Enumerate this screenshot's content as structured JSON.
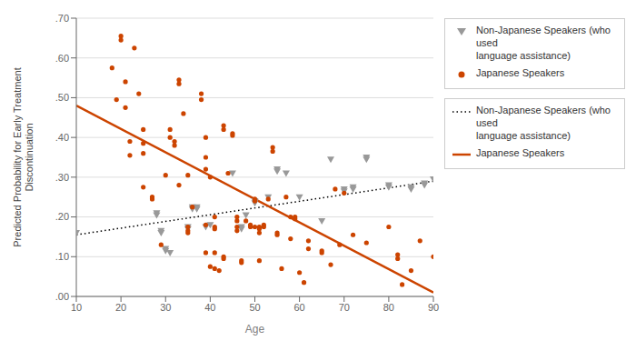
{
  "chart_data": {
    "type": "scatter",
    "xlabel": "Age",
    "ylabel": "Predicted Probability for Early Treatment\nDiscontinuation",
    "xlim": [
      10,
      90
    ],
    "ylim": [
      0.0,
      0.7
    ],
    "xticks": [
      10,
      20,
      30,
      40,
      50,
      60,
      70,
      80,
      90
    ],
    "yticks": [
      {
        "value": 0.0,
        "label": ".00"
      },
      {
        "value": 0.1,
        "label": ".10"
      },
      {
        "value": 0.2,
        "label": ".20"
      },
      {
        "value": 0.3,
        "label": ".30"
      },
      {
        "value": 0.4,
        "label": ".40"
      },
      {
        "value": 0.5,
        "label": ".50"
      },
      {
        "value": 0.6,
        "label": ".60"
      },
      {
        "value": 0.7,
        "label": ".70"
      }
    ],
    "grid": "y",
    "legend": "upper right",
    "series": [
      {
        "name": "Non-Japanese Speakers (who used\nlanguage assistance)",
        "type": "scatter",
        "color": "#999999",
        "marker": "triangle_down",
        "x": [
          10,
          28,
          28,
          29,
          29,
          30,
          30,
          31,
          35,
          35,
          36,
          36,
          37,
          37,
          39,
          40,
          45,
          47,
          47,
          48,
          50,
          50,
          53,
          55,
          55,
          57,
          60,
          65,
          67,
          70,
          70,
          72,
          72,
          75,
          75,
          80,
          80,
          85,
          85,
          88,
          88,
          90
        ],
        "values": [
          0.16,
          0.21,
          0.205,
          0.165,
          0.16,
          0.12,
          0.115,
          0.11,
          0.175,
          0.17,
          0.225,
          0.22,
          0.225,
          0.22,
          0.175,
          0.18,
          0.31,
          0.175,
          0.17,
          0.205,
          0.24,
          0.235,
          0.25,
          0.32,
          0.315,
          0.31,
          0.25,
          0.19,
          0.345,
          0.27,
          0.265,
          0.275,
          0.27,
          0.35,
          0.345,
          0.28,
          0.275,
          0.275,
          0.27,
          0.285,
          0.28,
          0.295
        ]
      },
      {
        "name": "Japanese Speakers",
        "type": "scatter",
        "color": "#CC4400",
        "marker": "circle",
        "x": [
          18,
          19,
          20,
          20,
          21,
          21,
          22,
          22,
          23,
          24,
          25,
          25,
          25,
          25,
          27,
          27,
          29,
          30,
          31,
          31,
          32,
          32,
          33,
          33,
          33,
          34,
          35,
          35,
          35,
          35,
          36,
          38,
          38,
          39,
          39,
          39,
          39,
          39,
          40,
          40,
          41,
          41,
          41,
          41,
          41,
          42,
          43,
          43,
          43,
          43,
          44,
          45,
          45,
          46,
          46,
          46,
          46,
          47,
          47,
          48,
          49,
          49,
          50,
          50,
          50,
          51,
          51,
          51,
          51,
          52,
          52,
          53,
          54,
          54,
          55,
          55,
          56,
          57,
          58,
          58,
          59,
          59,
          60,
          61,
          62,
          62,
          65,
          65,
          67,
          68,
          69,
          70,
          72,
          75,
          80,
          82,
          82,
          83,
          85,
          87,
          90
        ],
        "values": [
          0.575,
          0.495,
          0.655,
          0.645,
          0.54,
          0.475,
          0.39,
          0.355,
          0.625,
          0.51,
          0.42,
          0.385,
          0.36,
          0.275,
          0.25,
          0.245,
          0.13,
          0.305,
          0.4,
          0.42,
          0.39,
          0.38,
          0.545,
          0.535,
          0.28,
          0.46,
          0.305,
          0.175,
          0.165,
          0.16,
          0.225,
          0.51,
          0.495,
          0.4,
          0.35,
          0.32,
          0.18,
          0.11,
          0.3,
          0.075,
          0.2,
          0.175,
          0.17,
          0.11,
          0.07,
          0.065,
          0.43,
          0.42,
          0.1,
          0.095,
          0.31,
          0.41,
          0.405,
          0.2,
          0.19,
          0.175,
          0.165,
          0.09,
          0.085,
          0.19,
          0.18,
          0.175,
          0.245,
          0.24,
          0.175,
          0.175,
          0.17,
          0.16,
          0.09,
          0.18,
          0.175,
          0.245,
          0.375,
          0.365,
          0.16,
          0.155,
          0.07,
          0.25,
          0.2,
          0.145,
          0.2,
          0.195,
          0.06,
          0.035,
          0.14,
          0.12,
          0.115,
          0.11,
          0.08,
          0.27,
          0.13,
          0.26,
          0.155,
          0.135,
          0.175,
          0.105,
          0.095,
          0.03,
          0.065,
          0.14,
          0.1
        ]
      },
      {
        "name": "Non-Japanese Speakers (who used\nlanguage assistance)",
        "type": "line",
        "color": "#000000",
        "line_style": "dotted",
        "x": [
          10,
          90
        ],
        "values": [
          0.155,
          0.29
        ]
      },
      {
        "name": "Japanese Speakers",
        "type": "line",
        "color": "#CC4400",
        "line_style": "solid",
        "x": [
          10,
          90
        ],
        "values": [
          0.48,
          0.01
        ]
      }
    ]
  }
}
